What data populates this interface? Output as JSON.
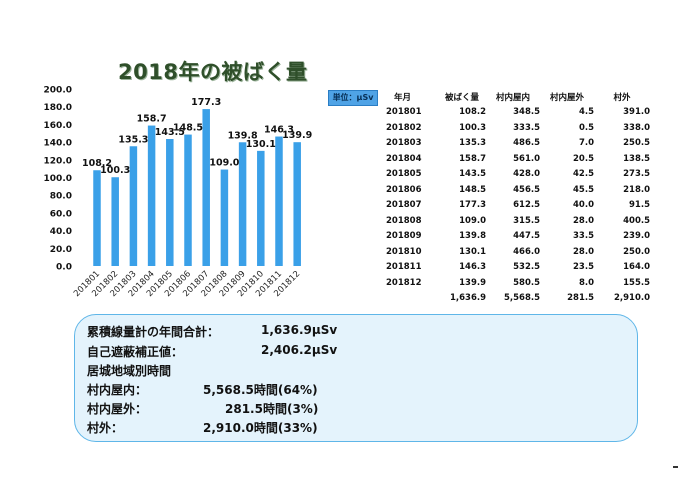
{
  "title": "2018年の被ばく量",
  "unit_badge": "単位：μSv",
  "chart_data": {
    "type": "bar",
    "categories": [
      "201801",
      "201802",
      "201803",
      "201804",
      "201805",
      "201806",
      "201807",
      "201808",
      "201809",
      "201810",
      "201811",
      "201812"
    ],
    "values": [
      108.2,
      100.3,
      135.3,
      158.7,
      143.5,
      148.5,
      177.3,
      109.0,
      139.8,
      130.1,
      146.3,
      139.9
    ],
    "data_labels": [
      "108.2",
      "100.3",
      "135.3",
      "158.7",
      "143.5",
      "148.5",
      "177.3",
      "109.0",
      "139.8",
      "130.1",
      "146.3",
      "139.9"
    ],
    "ylim": [
      0,
      200
    ],
    "yticks": [
      "0.0",
      "20.0",
      "40.0",
      "60.0",
      "80.0",
      "100.0",
      "120.0",
      "140.0",
      "160.0",
      "180.0",
      "200.0"
    ],
    "grid": false,
    "bar_color": "#3aa0e8"
  },
  "table": {
    "headers": [
      "年月",
      "被ばく量",
      "村内屋内",
      "村内屋外",
      "村外"
    ],
    "rows": [
      [
        "201801",
        "108.2",
        "348.5",
        "4.5",
        "391.0"
      ],
      [
        "201802",
        "100.3",
        "333.5",
        "0.5",
        "338.0"
      ],
      [
        "201803",
        "135.3",
        "486.5",
        "7.0",
        "250.5"
      ],
      [
        "201804",
        "158.7",
        "561.0",
        "20.5",
        "138.5"
      ],
      [
        "201805",
        "143.5",
        "428.0",
        "42.5",
        "273.5"
      ],
      [
        "201806",
        "148.5",
        "456.5",
        "45.5",
        "218.0"
      ],
      [
        "201807",
        "177.3",
        "612.5",
        "40.0",
        "91.5"
      ],
      [
        "201808",
        "109.0",
        "315.5",
        "28.0",
        "400.5"
      ],
      [
        "201809",
        "139.8",
        "447.5",
        "33.5",
        "239.0"
      ],
      [
        "201810",
        "130.1",
        "466.0",
        "28.0",
        "250.0"
      ],
      [
        "201811",
        "146.3",
        "532.5",
        "23.5",
        "164.0"
      ],
      [
        "201812",
        "139.9",
        "580.5",
        "8.0",
        "155.5"
      ]
    ],
    "totals": [
      "",
      "1,636.9",
      "5,568.5",
      "281.5",
      "2,910.0"
    ]
  },
  "summary": {
    "total_label": "累積線量計の年間合計：",
    "total_value": "1,636.9μSv",
    "corrected_label": "自己遮蔽補正値：",
    "corrected_value": "2,406.2μSv",
    "section_label": "居城地域別時間",
    "indoor_label": "村内屋内：",
    "indoor_value": "5,568.5時間(64%)",
    "outdoor_label": "村内屋外：",
    "outdoor_value": "281.5時間(3%)",
    "outside_label": "村外：",
    "outside_value": "2,910.0時間(33%)"
  }
}
